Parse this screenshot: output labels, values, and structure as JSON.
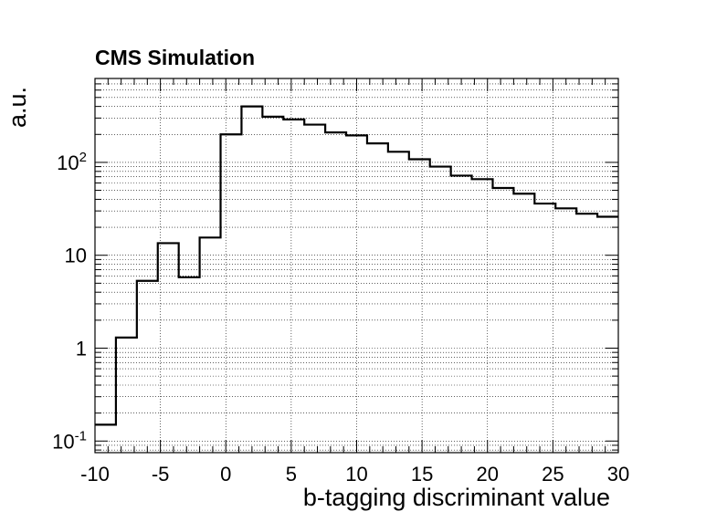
{
  "chart_data": {
    "type": "histogram",
    "title": "CMS Simulation",
    "xlabel": "b-tagging discriminant value",
    "ylabel": "a.u.",
    "xlim": [
      -10,
      30
    ],
    "ylim": [
      0.075,
      800
    ],
    "yscale": "log",
    "grid": true,
    "x_ticks": [
      "-10",
      "-5",
      "0",
      "5",
      "10",
      "15",
      "20",
      "25",
      "30"
    ],
    "bin_edges": [
      -10,
      -8.4,
      -6.8,
      -5.2,
      -3.6,
      -2.0,
      -0.4,
      1.2,
      2.8,
      4.4,
      6.0,
      7.6,
      9.2,
      10.8,
      12.4,
      14.0,
      15.6,
      17.2,
      18.8,
      20.4,
      22.0,
      23.6,
      25.2,
      26.8,
      28.4,
      30
    ],
    "values": [
      0.15,
      1.3,
      5.3,
      13.5,
      5.8,
      15.5,
      200,
      400,
      310,
      290,
      255,
      210,
      195,
      160,
      130,
      108,
      90,
      72,
      66,
      53,
      46,
      36,
      32,
      28,
      26
    ],
    "series": [
      {
        "values_ref": "values"
      }
    ]
  }
}
